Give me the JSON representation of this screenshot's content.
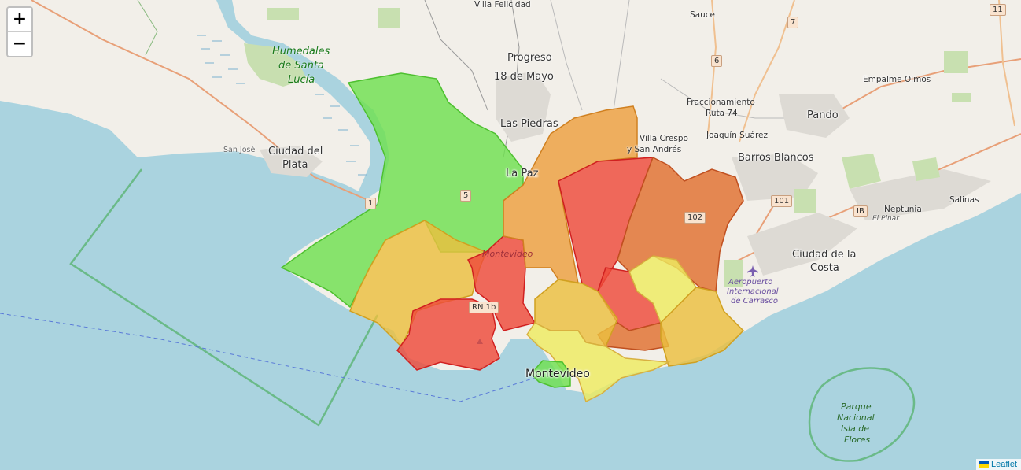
{
  "controls": {
    "zoom_in": "+",
    "zoom_out": "−"
  },
  "attribution": {
    "link": "Leaflet"
  },
  "labels": {
    "villa_felicidad": "Villa Felicidad",
    "sauce": "Sauce",
    "progreso": "Progreso",
    "dieciocho_mayo": "18 de Mayo",
    "las_piedras": "Las Piedras",
    "la_paz": "La Paz",
    "villa_crespo_1": "Villa Crespo",
    "villa_crespo_2": "y San Andrés",
    "fracc_1": "Fraccionamiento",
    "fracc_2": "Ruta 74",
    "joaquin_suarez": "Joaquín Suárez",
    "pando": "Pando",
    "empalme_olmos": "Empalme Olmos",
    "barros_blancos": "Barros Blancos",
    "neptunia": "Neptunia",
    "salinas": "Salinas",
    "el_pinar": "El Pinar",
    "ciudad_costa_1": "Ciudad de la",
    "ciudad_costa_2": "Costa",
    "san_jose": "San José",
    "ciudad_plata_1": "Ciudad del",
    "ciudad_plata_2": "Plata",
    "montevideo_dept": "Montevideo",
    "montevideo_city": "Montevideo",
    "rn1b": "RN 1b",
    "humedales_1": "Humedales",
    "humedales_2": "de Santa",
    "humedales_3": "Lucía",
    "airport_1": "Aeropuerto",
    "airport_2": "Internacional",
    "airport_3": "de Carrasco",
    "parque_1": "Parque",
    "parque_2": "Nacional",
    "parque_3": "Isla de",
    "parque_4": "Flores"
  },
  "shields": {
    "r11": "11",
    "r7": "7",
    "r6": "6",
    "r5": "5",
    "r1": "1",
    "r101": "101",
    "r102": "102",
    "ib": "IB"
  },
  "colors": {
    "water": "#aad3df",
    "land": "#f2efe9",
    "green": "#6fe050",
    "yellow_orange": "#ecc040",
    "orange": "#eda040",
    "red": "#ee4a3a",
    "dark_orange": "#e07030",
    "yellow": "#eeec60"
  }
}
